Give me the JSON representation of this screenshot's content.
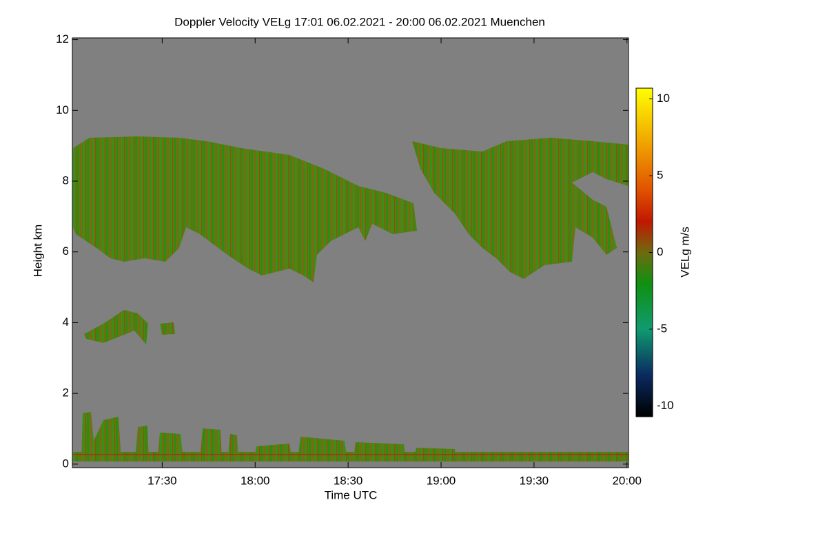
{
  "chart_data": {
    "type": "heatmap",
    "title": "Doppler Velocity VELg   17:01 06.02.2021 - 20:00 06.02.2021 Muenchen",
    "x_label": "Time UTC",
    "y_label": "Height km",
    "colorbar_label": "VELg m/s",
    "xlim": [
      1,
      180.5
    ],
    "xticks": [
      {
        "value": 30,
        "label": "17:30"
      },
      {
        "value": 60,
        "label": "18:00"
      },
      {
        "value": 90,
        "label": "18:30"
      },
      {
        "value": 120,
        "label": "19:00"
      },
      {
        "value": 150,
        "label": "19:30"
      },
      {
        "value": 180,
        "label": "20:00"
      }
    ],
    "ylim": [
      -0.1,
      12.05
    ],
    "yticks": [
      0,
      2,
      4,
      6,
      8,
      10,
      12
    ],
    "clim": [
      -10.7,
      10.7
    ],
    "cticks": [
      -10,
      -5,
      0,
      5,
      10
    ],
    "colormap": [
      {
        "value": 10.7,
        "color": "#ffff00"
      },
      {
        "value": 7,
        "color": "#f0a000"
      },
      {
        "value": 4,
        "color": "#e05000"
      },
      {
        "value": 2,
        "color": "#c01800"
      },
      {
        "value": 0,
        "color": "#6f6a10"
      },
      {
        "value": -2,
        "color": "#109010"
      },
      {
        "value": -5,
        "color": "#109a70"
      },
      {
        "value": -8,
        "color": "#0a2a60"
      },
      {
        "value": -10.7,
        "color": "#000000"
      }
    ]
  }
}
